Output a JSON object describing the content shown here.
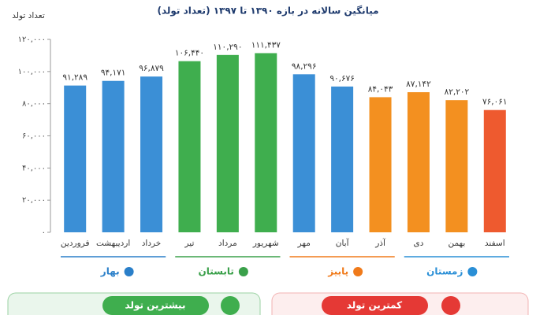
{
  "chart_data": {
    "type": "bar",
    "subtitle": "میانگین سالانه در بازه ۱۳۹۰ تا ۱۳۹۷ (تعداد تولد)",
    "y_label": "تعداد تولد",
    "categories": [
      "فروردین",
      "اردیبهشت",
      "خرداد",
      "تیر",
      "مرداد",
      "شهریور",
      "مهر",
      "آبان",
      "آذر",
      "دی",
      "بهمن",
      "اسفند"
    ],
    "values": [
      91289,
      94171,
      96879,
      106440,
      110290,
      111437,
      98296,
      90676,
      84043,
      87142,
      82202,
      76061
    ],
    "value_labels": [
      "۹۱,۲۸۹",
      "۹۴,۱۷۱",
      "۹۶,۸۷۹",
      "۱۰۶,۴۴۰",
      "۱۱۰,۲۹۰",
      "۱۱۱,۴۳۷",
      "۹۸,۲۹۶",
      "۹۰,۶۷۶",
      "۸۴,۰۴۳",
      "۸۷,۱۴۲",
      "۸۲,۲۰۲",
      "۷۶,۰۶۱"
    ],
    "colors": [
      "#3b8fd6",
      "#3b8fd6",
      "#3b8fd6",
      "#3fae4e",
      "#3fae4e",
      "#3fae4e",
      "#3b8fd6",
      "#3b8fd6",
      "#f39020",
      "#f39020",
      "#f39020",
      "#ee5a2f"
    ],
    "ylim": [
      0,
      120000
    ],
    "yticks": [
      {
        "value": 0,
        "label": "۰"
      },
      {
        "value": 20000,
        "label": "۲۰,۰۰۰"
      },
      {
        "value": 40000,
        "label": "۴۰,۰۰۰"
      },
      {
        "value": 60000,
        "label": "۶۰,۰۰۰"
      },
      {
        "value": 80000,
        "label": "۸۰,۰۰۰"
      },
      {
        "value": 100000,
        "label": "۱۰۰,۰۰۰"
      },
      {
        "value": 120000,
        "label": "۱۲۰,۰۰۰"
      }
    ],
    "grid": false,
    "groups": [
      {
        "name": "بهار",
        "color": "#2a7fc9"
      },
      {
        "name": "تابستان",
        "color": "#3aa04a"
      },
      {
        "name": "پاییز",
        "color": "#f07a1a"
      },
      {
        "name": "زمستان",
        "color": "#2a8fd6"
      }
    ]
  },
  "footer": {
    "max_label": "بیشترین تولد",
    "min_label": "کمترین تولد"
  }
}
